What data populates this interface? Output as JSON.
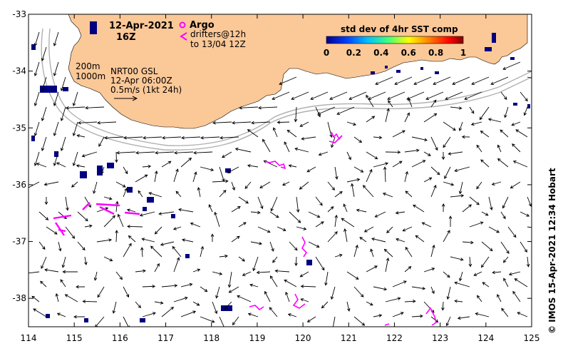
{
  "header": {
    "date": "12-Apr-2021",
    "hour": "16Z"
  },
  "legend": {
    "argo_label": "Argo",
    "drifters_line1": "drifters@12h",
    "drifters_line2": "to 13/04 12Z",
    "argo_color": "#ff00ff",
    "drifter_color": "#ff00ff"
  },
  "colorbar": {
    "title": "std dev of 4hr SST comp",
    "ticks": [
      "0",
      "0.2",
      "0.4",
      "0.6",
      "0.8",
      "1"
    ],
    "colors": [
      "#00008f",
      "#0040ff",
      "#00c0ff",
      "#40ff80",
      "#ffff00",
      "#ff8000",
      "#ff0000",
      "#800000"
    ]
  },
  "contours": {
    "label_200": "200m",
    "label_1000": "1000m"
  },
  "product": {
    "line1": "NRT00 GSL",
    "line2": "12-Apr 06:00Z",
    "scale": "0.5m/s (1kt 24h)"
  },
  "credit": "© IMOS 15-Apr-2021 12:34 Hobart",
  "axes": {
    "x_ticks": [
      "114",
      "115",
      "116",
      "117",
      "118",
      "119",
      "120",
      "121",
      "122",
      "123",
      "124",
      "125"
    ],
    "y_ticks": [
      "-33",
      "-34",
      "-35",
      "-36",
      "-37",
      "-38"
    ],
    "xlim": [
      114,
      125
    ],
    "ylim": [
      -38.5,
      -33
    ]
  },
  "colors": {
    "land": "#fbc898",
    "sst_patch": "#000080",
    "contour": "#b0b0b0",
    "arrow": "#000000"
  }
}
